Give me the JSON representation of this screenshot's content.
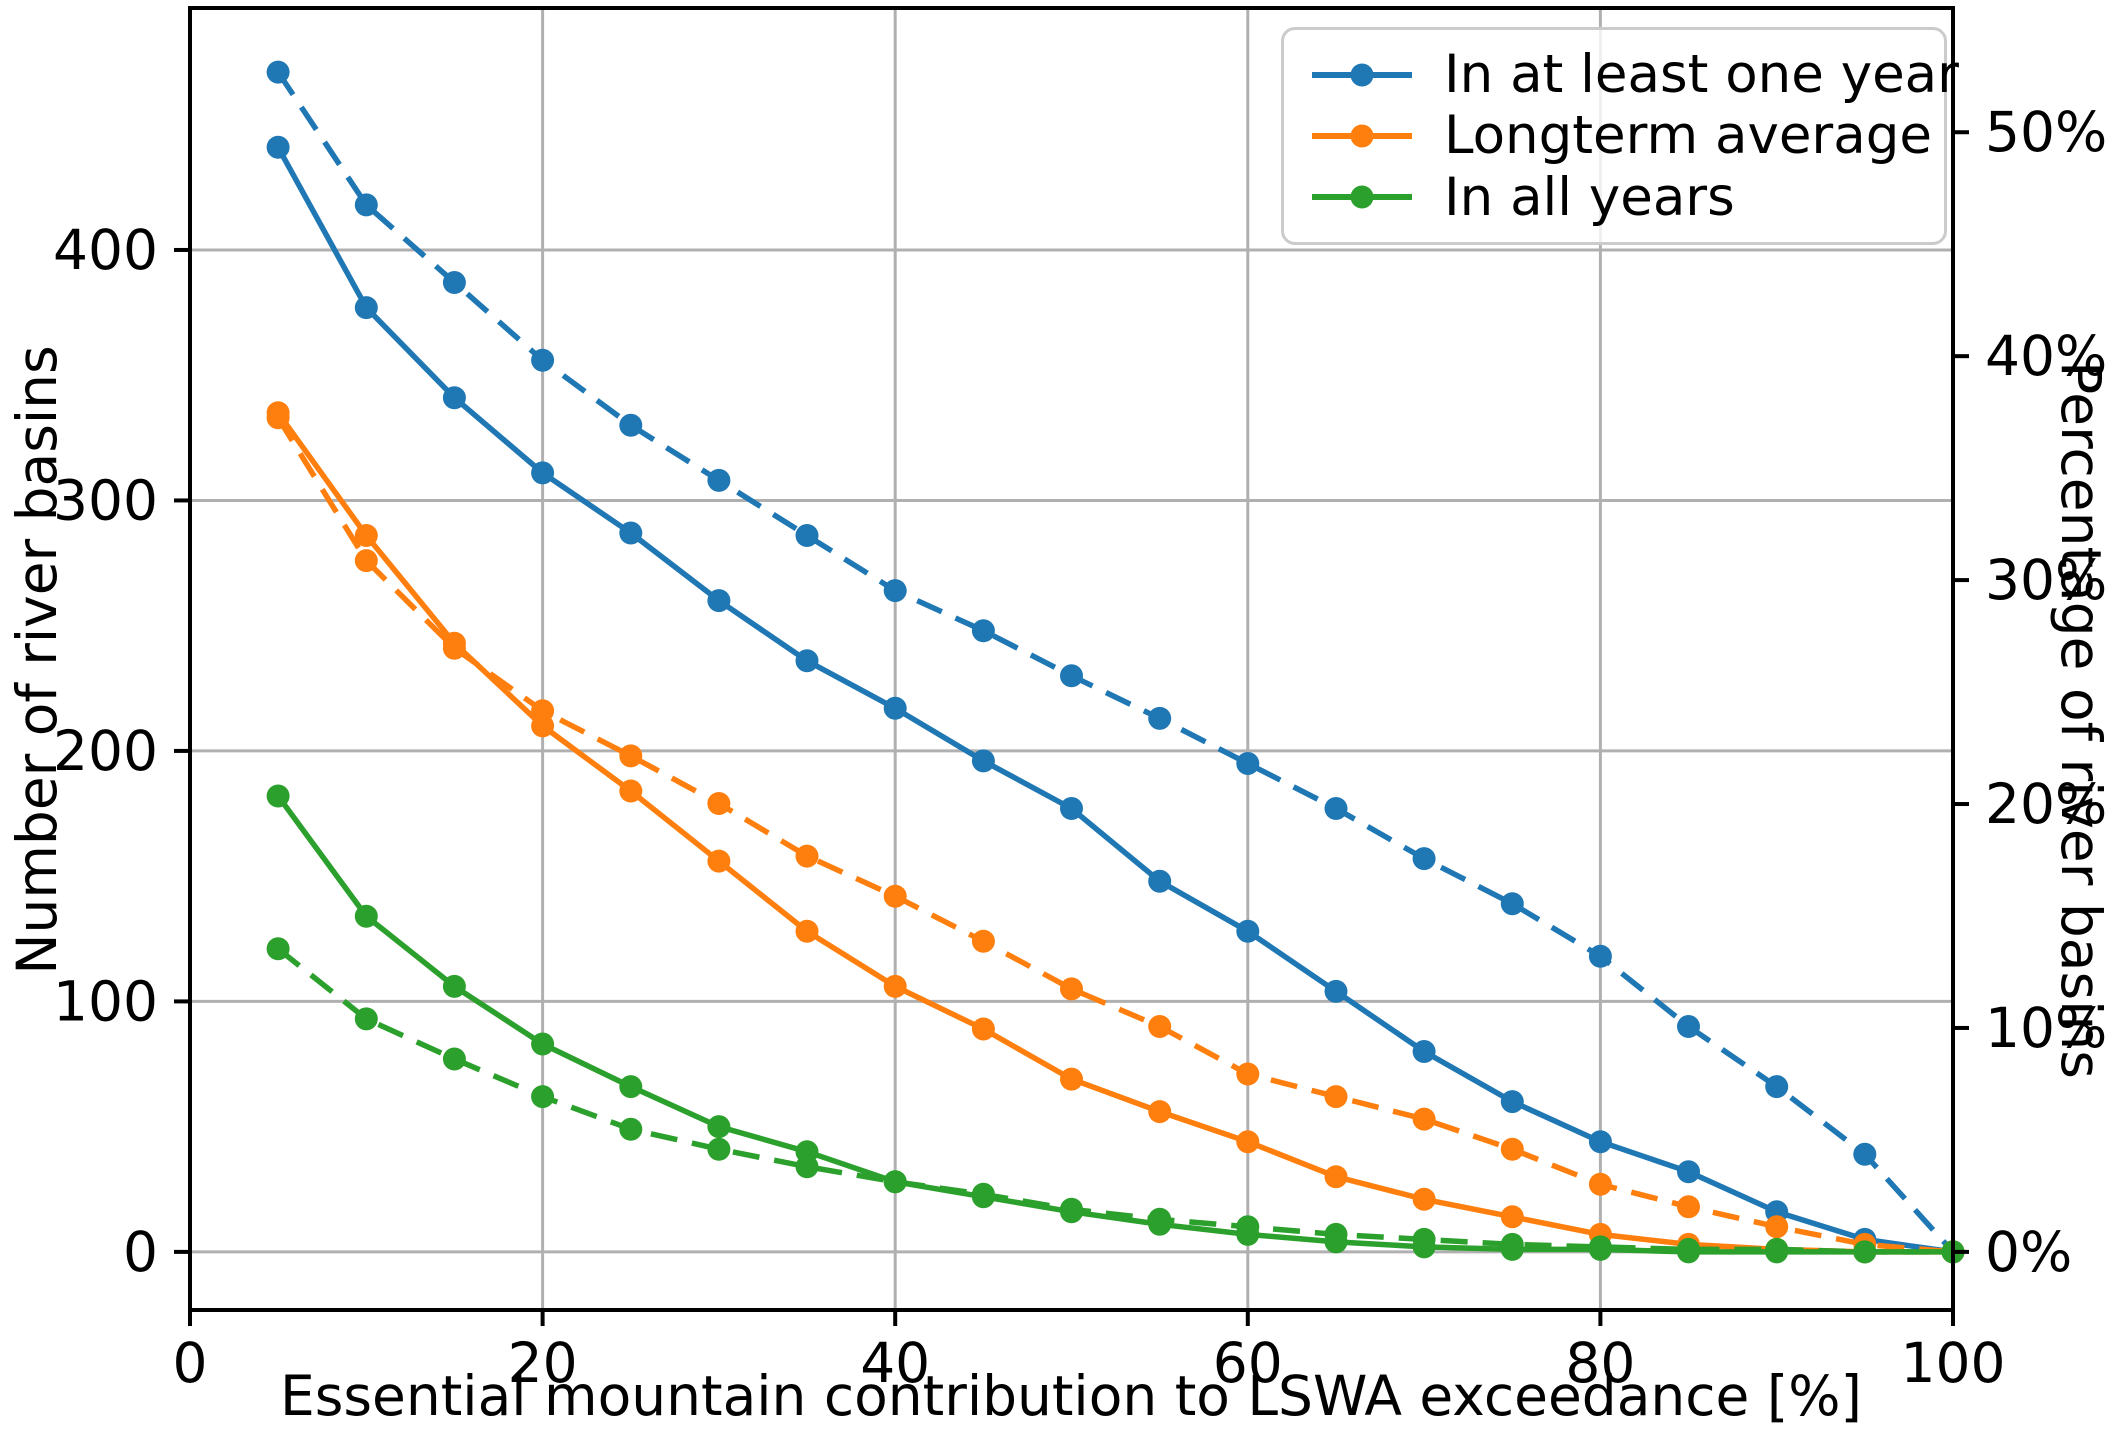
{
  "figure": {
    "xlabel": "Essential mountain contribution to LSWA exceedance [%]",
    "ylabel_left": "Number of river basins",
    "ylabel_right": "Percentage of river basins"
  },
  "chart_data": {
    "type": "line",
    "title": "",
    "xlabel": "Essential mountain contribution to LSWA exceedance [%]",
    "ylabel": "Number of river basins",
    "ylabel_right": "Percentage of river basins",
    "grid": true,
    "legend_position": "upper right",
    "xlim": [
      0,
      100
    ],
    "ylim_left": [
      -23.2,
      496.6
    ],
    "x": [
      5,
      10,
      15,
      20,
      25,
      30,
      35,
      40,
      45,
      50,
      55,
      60,
      65,
      70,
      75,
      80,
      85,
      90,
      95,
      100
    ],
    "series": [
      {
        "name": "In at least one year (solid)",
        "legend": "In at least one year",
        "color": "#1f77b4",
        "style": "solid",
        "values": [
          441,
          377,
          341,
          311,
          287,
          260,
          236,
          217,
          196,
          177,
          148,
          128,
          104,
          80,
          60,
          44,
          32,
          16,
          5,
          0
        ]
      },
      {
        "name": "In at least one year (dashed)",
        "legend": "In at least one year",
        "color": "#1f77b4",
        "style": "dashed",
        "values": [
          471,
          418,
          387,
          356,
          330,
          308,
          286,
          264,
          248,
          230,
          213,
          195,
          177,
          157,
          139,
          118,
          90,
          66,
          39,
          0
        ]
      },
      {
        "name": "Longterm average (solid)",
        "legend": "Longterm average",
        "color": "#ff7f0e",
        "style": "solid",
        "values": [
          335,
          286,
          243,
          210,
          184,
          156,
          128,
          106,
          89,
          69,
          56,
          44,
          30,
          21,
          14,
          7,
          3,
          1,
          0,
          0
        ]
      },
      {
        "name": "Longterm average (dashed)",
        "legend": "Longterm average",
        "color": "#ff7f0e",
        "style": "dashed",
        "values": [
          333,
          276,
          241,
          216,
          198,
          179,
          158,
          142,
          124,
          105,
          90,
          71,
          62,
          53,
          41,
          27,
          18,
          10,
          3,
          0
        ]
      },
      {
        "name": "In all years (solid)",
        "legend": "In all years",
        "color": "#2ca02c",
        "style": "solid",
        "values": [
          182,
          134,
          106,
          83,
          66,
          50,
          40,
          28,
          22,
          16,
          11,
          7,
          4,
          2,
          1,
          1,
          0,
          0,
          0,
          0
        ]
      },
      {
        "name": "In all years (dashed)",
        "legend": "In all years",
        "color": "#2ca02c",
        "style": "dashed",
        "values": [
          121,
          93,
          77,
          62,
          49,
          41,
          34,
          28,
          23,
          17,
          13,
          10,
          7,
          5,
          3,
          2,
          1,
          1,
          0,
          0
        ]
      }
    ],
    "legend": [
      {
        "label": "In at least one year",
        "color": "#1f77b4"
      },
      {
        "label": "Longterm average",
        "color": "#ff7f0e"
      },
      {
        "label": "In all years",
        "color": "#2ca02c"
      }
    ],
    "x_ticks": [
      {
        "value": 0,
        "label": "0"
      },
      {
        "value": 20,
        "label": "20"
      },
      {
        "value": 40,
        "label": "40"
      },
      {
        "value": 60,
        "label": "60"
      },
      {
        "value": 80,
        "label": "80"
      },
      {
        "value": 100,
        "label": "100"
      }
    ],
    "y_left_ticks": [
      {
        "value": 0,
        "label": "0"
      },
      {
        "value": 100,
        "label": "100"
      },
      {
        "value": 200,
        "label": "200"
      },
      {
        "value": 300,
        "label": "300"
      },
      {
        "value": 400,
        "label": "400"
      }
    ],
    "y_right_ticks": [
      {
        "value": 0,
        "label": "0%"
      },
      {
        "value": 10,
        "label": "10%"
      },
      {
        "value": 20,
        "label": "20%"
      },
      {
        "value": 30,
        "label": "30%"
      },
      {
        "value": 40,
        "label": "40%"
      },
      {
        "value": 50,
        "label": "50%"
      }
    ],
    "right_axis_basins_per_percent": 8.94,
    "colors": {
      "blue": "#1f77b4",
      "orange": "#ff7f0e",
      "green": "#2ca02c",
      "grid": "#b0b0b0",
      "spine": "#000000",
      "text": "#000000"
    }
  }
}
